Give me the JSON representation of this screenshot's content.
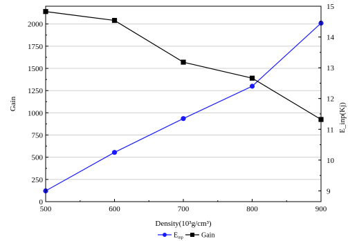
{
  "chart_data": {
    "type": "line",
    "x": [
      500,
      600,
      700,
      800,
      900
    ],
    "xlabel": "Density(10³g/cm³)",
    "xlim": [
      500,
      900
    ],
    "xticks": [
      500,
      600,
      700,
      800,
      900
    ],
    "ylabel_left": "Gain",
    "ylim_left": [
      0,
      2200
    ],
    "yticks_left": [
      0,
      250,
      500,
      750,
      1000,
      1250,
      1500,
      1750,
      2000
    ],
    "ylabel_right": "E_inp(Kj)",
    "ylim_right": [
      8.65,
      15
    ],
    "yticks_right": [
      9,
      10,
      11,
      12,
      13,
      14,
      15
    ],
    "grid": true,
    "legend_position": "bottom-center",
    "series": [
      {
        "name": "E",
        "name_sub": "inp",
        "axis": "right",
        "color": "#1a1aff",
        "marker": "circle",
        "values": [
          9.0,
          10.25,
          11.35,
          12.4,
          14.45
        ]
      },
      {
        "name": "Gain",
        "axis": "left",
        "color": "#000000",
        "marker": "square",
        "values": [
          2140,
          2040,
          1570,
          1390,
          925
        ]
      }
    ]
  }
}
